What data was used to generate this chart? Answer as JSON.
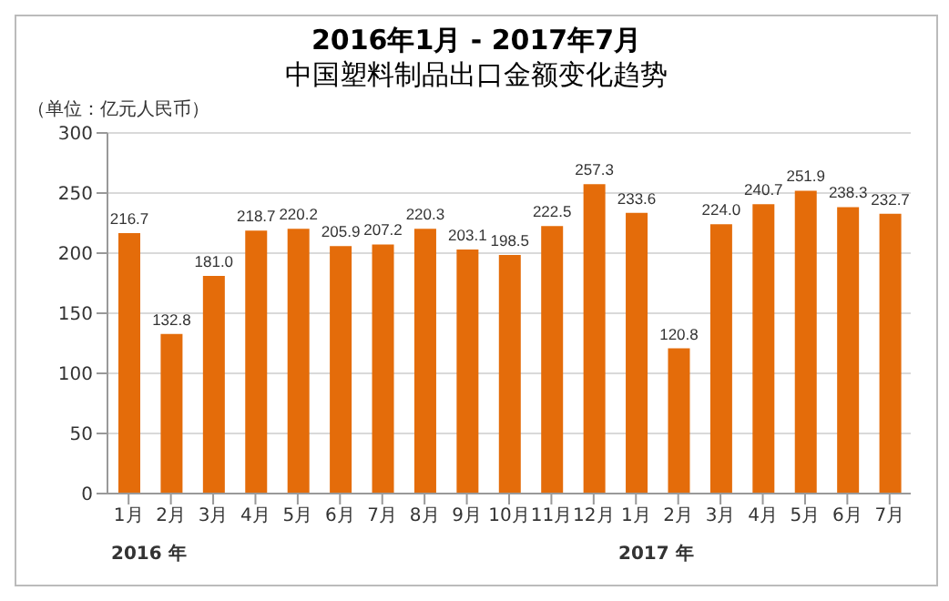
{
  "chart_data": {
    "type": "bar",
    "title": "2016年1月 - 2017年7月",
    "subtitle": "中国塑料制品出口金额变化趋势",
    "ylabel": "（单位：亿元人民币）",
    "categories": [
      "1月",
      "2月",
      "3月",
      "4月",
      "5月",
      "6月",
      "7月",
      "8月",
      "9月",
      "10月",
      "11月",
      "12月",
      "1月",
      "2月",
      "3月",
      "4月",
      "5月",
      "6月",
      "7月"
    ],
    "values": [
      216.7,
      132.8,
      181.0,
      218.7,
      220.2,
      205.9,
      207.2,
      220.3,
      203.1,
      198.5,
      222.5,
      257.3,
      233.6,
      120.8,
      224.0,
      240.7,
      251.9,
      238.3,
      232.7
    ],
    "color": "#e46c0a",
    "ylim": [
      0,
      300
    ],
    "yticks": [
      0,
      50,
      100,
      150,
      200,
      250,
      300
    ],
    "value_labels": [
      "216.7",
      "132.8",
      "181.0",
      "218.7",
      "220.2",
      "205.9",
      "207.2",
      "220.3",
      "203.1",
      "198.5",
      "222.5",
      "257.3",
      "233.6",
      "120.8",
      "224.0",
      "240.7",
      "251.9",
      "238.3",
      "232.7"
    ],
    "grid": "y",
    "legend": false,
    "annotations": [
      "2016 年",
      "2017 年"
    ]
  }
}
